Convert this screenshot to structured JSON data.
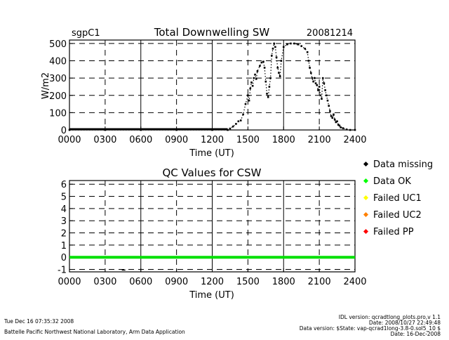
{
  "chart_data": [
    {
      "type": "scatter",
      "site": "sgpC1",
      "title": "Total Downwelling SW",
      "date": "20081214",
      "xlabel": "Time (UT)",
      "ylabel": "W/m2",
      "xlim": [
        0,
        2400
      ],
      "ylim": [
        0,
        520
      ],
      "x_ticks": [
        "0000",
        "0300",
        "0600",
        "0900",
        "1200",
        "1500",
        "1800",
        "2100",
        "2400"
      ],
      "y_ticks": [
        0,
        100,
        200,
        300,
        400,
        500
      ],
      "grid": true,
      "series": [
        {
          "color": "#000000",
          "points": [
            [
              0,
              0
            ],
            [
              300,
              0
            ],
            [
              600,
              0
            ],
            [
              900,
              0
            ],
            [
              1200,
              0
            ],
            [
              1330,
              0
            ],
            [
              1350,
              8
            ],
            [
              1375,
              20
            ],
            [
              1400,
              35
            ],
            [
              1420,
              50
            ],
            [
              1440,
              55
            ],
            [
              1460,
              90
            ],
            [
              1480,
              150
            ],
            [
              1500,
              200
            ],
            [
              1510,
              170
            ],
            [
              1520,
              240
            ],
            [
              1530,
              275
            ],
            [
              1540,
              255
            ],
            [
              1550,
              300
            ],
            [
              1560,
              320
            ],
            [
              1570,
              295
            ],
            [
              1580,
              340
            ],
            [
              1600,
              370
            ],
            [
              1615,
              390
            ],
            [
              1630,
              395
            ],
            [
              1640,
              360
            ],
            [
              1650,
              280
            ],
            [
              1660,
              210
            ],
            [
              1670,
              190
            ],
            [
              1680,
              250
            ],
            [
              1690,
              300
            ],
            [
              1700,
              430
            ],
            [
              1710,
              470
            ],
            [
              1720,
              500
            ],
            [
              1730,
              480
            ],
            [
              1740,
              420
            ],
            [
              1750,
              360
            ],
            [
              1760,
              330
            ],
            [
              1770,
              310
            ],
            [
              1780,
              400
            ],
            [
              1800,
              480
            ],
            [
              1830,
              495
            ],
            [
              1860,
              500
            ],
            [
              1890,
              500
            ],
            [
              1920,
              495
            ],
            [
              1950,
              485
            ],
            [
              1980,
              470
            ],
            [
              2000,
              450
            ],
            [
              2010,
              400
            ],
            [
              2020,
              360
            ],
            [
              2030,
              330
            ],
            [
              2040,
              300
            ],
            [
              2050,
              280
            ],
            [
              2060,
              300
            ],
            [
              2070,
              270
            ],
            [
              2080,
              260
            ],
            [
              2090,
              230
            ],
            [
              2100,
              250
            ],
            [
              2110,
              200
            ],
            [
              2120,
              180
            ],
            [
              2130,
              300
            ],
            [
              2140,
              270
            ],
            [
              2150,
              230
            ],
            [
              2160,
              200
            ],
            [
              2170,
              170
            ],
            [
              2180,
              140
            ],
            [
              2190,
              110
            ],
            [
              2200,
              80
            ],
            [
              2210,
              70
            ],
            [
              2220,
              90
            ],
            [
              2230,
              60
            ],
            [
              2240,
              45
            ],
            [
              2250,
              50
            ],
            [
              2260,
              30
            ],
            [
              2270,
              25
            ],
            [
              2280,
              15
            ],
            [
              2300,
              10
            ],
            [
              2330,
              3
            ],
            [
              2360,
              0
            ],
            [
              2400,
              0
            ]
          ]
        }
      ]
    },
    {
      "type": "line",
      "title": "QC Values for CSW",
      "xlabel": "Time (UT)",
      "xlim": [
        0,
        2400
      ],
      "ylim": [
        -1.2,
        6.3
      ],
      "x_ticks": [
        "0000",
        "0300",
        "0600",
        "0900",
        "1200",
        "1500",
        "1800",
        "2100",
        "2400"
      ],
      "y_ticks": [
        "-1",
        "0",
        "1",
        "2",
        "3",
        "4",
        "5",
        "6"
      ],
      "grid": true,
      "series": [
        {
          "color": "#00e000",
          "points": [
            [
              0,
              0
            ],
            [
              2400,
              0
            ]
          ]
        },
        {
          "color": "#000000",
          "points": [
            [
              440,
              -1.05
            ],
            [
              470,
              -1.05
            ]
          ]
        }
      ],
      "legend": {
        "placement": "right",
        "entries": [
          {
            "label": "Data missing",
            "color": "#000000"
          },
          {
            "label": "Data OK",
            "color": "#00ff00"
          },
          {
            "label": "Failed UC1",
            "color": "#ffff00"
          },
          {
            "label": "Failed UC2",
            "color": "#ff8000"
          },
          {
            "label": "Failed PP",
            "color": "#ff0000"
          }
        ]
      }
    }
  ],
  "footer": {
    "timestamp": "Tue Dec 16 07:35:32 2008",
    "organization": "Battelle Pacific Northwest National Laboratory, Arm Data Application",
    "idl_version": "IDL version: qcradtlong_plots.pro,v 1.1",
    "version_date": "Date: 2008/10/27 22:49:48",
    "data_version": "Data version: $State: vap-qcrad1long-3.8-0.sol5_10 $",
    "data_date": "Date: 16-Dec-2008"
  }
}
